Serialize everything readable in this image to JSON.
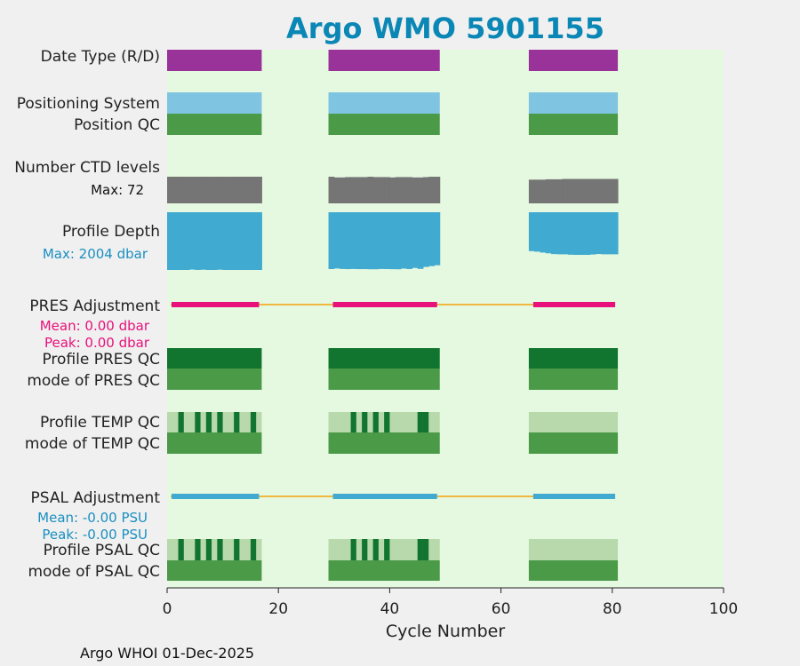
{
  "chart_data": {
    "type": "timeline",
    "title": "Argo WMO 5901155",
    "xlabel": "Cycle Number",
    "xlim": [
      0,
      100
    ],
    "xticks": [
      0,
      20,
      40,
      60,
      80,
      100
    ],
    "xtick_labels": [
      "0",
      "20",
      "40",
      "60",
      "80",
      "100"
    ],
    "footer": "Argo WHOI 01-Dec-2025",
    "segments": [
      {
        "start": 0,
        "end": 17
      },
      {
        "start": 29,
        "end": 49
      },
      {
        "start": 65,
        "end": 81
      }
    ],
    "rows": [
      {
        "key": "date_type",
        "label": "Date Type (R/D)"
      },
      {
        "key": "positioning_system",
        "label": "Positioning System"
      },
      {
        "key": "position_qc",
        "label": "Position QC"
      },
      {
        "key": "ctd_levels",
        "label": "Number CTD levels",
        "sublabel": "Max: 72"
      },
      {
        "key": "profile_depth",
        "label": "Profile Depth",
        "sublabel": "Max: 2004 dbar"
      },
      {
        "key": "pres_adjustment",
        "label": "PRES Adjustment",
        "sublabels": [
          "Mean: 0.00 dbar",
          "Peak: 0.00 dbar"
        ]
      },
      {
        "key": "profile_pres_qc",
        "label": "Profile PRES QC"
      },
      {
        "key": "mode_pres_qc",
        "label": "mode of PRES QC"
      },
      {
        "key": "profile_temp_qc",
        "label": "Profile TEMP QC"
      },
      {
        "key": "mode_temp_qc",
        "label": "mode of TEMP QC"
      },
      {
        "key": "psal_adjustment",
        "label": "PSAL Adjustment",
        "sublabels": [
          "Mean: -0.00 PSU",
          "Peak: -0.00 PSU"
        ]
      },
      {
        "key": "profile_psal_qc",
        "label": "Profile PSAL QC"
      },
      {
        "key": "mode_psal_qc",
        "label": "mode of PSAL QC"
      }
    ],
    "ctd_levels_max": 72,
    "ctd_levels_by_segment": [
      [
        72,
        72,
        72,
        72,
        72,
        72,
        72,
        72,
        72,
        72,
        72,
        72,
        72,
        72,
        72,
        72,
        72
      ],
      [
        72,
        70,
        70,
        71,
        71,
        71,
        71,
        72,
        71,
        71,
        71,
        70,
        71,
        71,
        71,
        70,
        70,
        71,
        72,
        72
      ],
      [
        64,
        64,
        64,
        65,
        65,
        65,
        66,
        66,
        66,
        66,
        66,
        66,
        66,
        66,
        66,
        66
      ]
    ],
    "depth_max_dbar": 2004,
    "profile_depth_by_segment": [
      [
        2004,
        2004,
        2004,
        2004,
        1990,
        2004,
        1995,
        2004,
        2004,
        1994,
        2004,
        2004,
        2004,
        2004,
        2004,
        2004,
        2004
      ],
      [
        1973,
        1953,
        1970,
        1975,
        1970,
        1975,
        1975,
        1980,
        1980,
        1970,
        1973,
        1977,
        1980,
        1957,
        1973,
        1935,
        1967,
        1900,
        1870,
        1840
      ],
      [
        1350,
        1370,
        1400,
        1426,
        1453,
        1460,
        1460,
        1475,
        1480,
        1480,
        1480,
        1467,
        1450,
        1460,
        1460,
        1460
      ]
    ],
    "temp_qc_flagged_cycles": [
      2,
      5,
      7,
      9,
      12,
      15,
      33,
      35,
      37,
      39,
      45,
      46
    ],
    "psal_qc_flagged_cycles": [
      2,
      5,
      7,
      9,
      12,
      15,
      33,
      35,
      37,
      39,
      45,
      46
    ],
    "pres_adjustment_mean": 0.0,
    "psal_adjustment_mean": -0.0
  },
  "colors": {
    "plot_bg": "#e5f8e0",
    "fig_bg": "#f0f0f0",
    "date_type": "#993399",
    "positioning": "#7fc4e0",
    "qc_good": "#4a9a48",
    "qc_dark": "#117530",
    "qc_light": "#b8d9ac",
    "ctd": "#757575",
    "depth": "#41aad0",
    "pres_adj": "#e8107a",
    "psal_adj": "#41aad0",
    "gap_line": "#f0b840",
    "title": "#0a87b5",
    "depth_label": "#1a8fc0",
    "pres_label": "#e8107a",
    "psal_label": "#1a8fc0"
  }
}
